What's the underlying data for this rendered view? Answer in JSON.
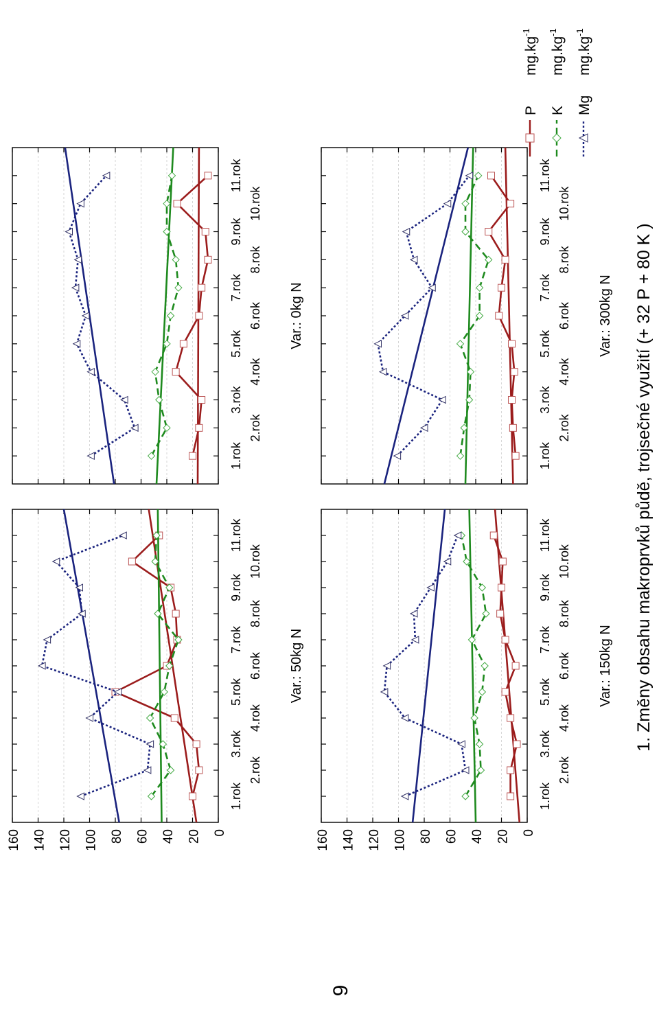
{
  "page_number": "9",
  "figure_title": "1. Změny obsahu makroprvků půdě, trojsečné využití (+ 32 P + 80 K )",
  "legend": [
    {
      "label": "P",
      "unit": "mg.kg",
      "sup": "-1",
      "color": "#9b1c1c",
      "dash": "solid",
      "marker": "square"
    },
    {
      "label": "K",
      "unit": "mg.kg",
      "sup": "-1",
      "color": "#1e8a1e",
      "dash": "dashed",
      "marker": "diamond"
    },
    {
      "label": "Mg",
      "unit": "mg.kg",
      "sup": "-1",
      "color": "#1a237e",
      "dash": "dotted",
      "marker": "triangle"
    }
  ],
  "chart_data": [
    {
      "type": "line",
      "title": "Var.: 50kg N",
      "categories": [
        "1.rok",
        "2.rok",
        "3.rok",
        "4.rok",
        "5.rok",
        "6.rok",
        "7.rok",
        "8.rok",
        "9.rok",
        "10.rok",
        "11.rok"
      ],
      "y_ticks": [
        "0",
        "20",
        "40",
        "60",
        "80",
        "100",
        "120",
        "140",
        "160"
      ],
      "ylim": [
        0,
        160
      ],
      "grid": true,
      "series": [
        {
          "name": "P",
          "values": [
            20,
            15,
            17,
            34,
            80,
            40,
            32,
            33,
            37,
            67,
            46
          ],
          "trend": [
            17,
            54
          ]
        },
        {
          "name": "K",
          "values": [
            52,
            37,
            43,
            53,
            42,
            38,
            31,
            47,
            38,
            49,
            48
          ],
          "trend": [
            44,
            47
          ]
        },
        {
          "name": "Mg",
          "values": [
            107,
            55,
            53,
            100,
            78,
            137,
            133,
            106,
            108,
            126,
            74
          ],
          "trend": [
            77,
            120
          ]
        }
      ]
    },
    {
      "type": "line",
      "title": "Var.: 0kg N",
      "categories": [
        "1.rok",
        "2.rok",
        "3.rok",
        "4.rok",
        "5.rok",
        "6.rok",
        "7.rok",
        "8.rok",
        "9.rok",
        "10.rok",
        "11.rok"
      ],
      "y_ticks": [
        "0",
        "20",
        "40",
        "60",
        "80",
        "100",
        "120",
        "140",
        "160"
      ],
      "ylim": [
        0,
        160
      ],
      "grid": true,
      "series": [
        {
          "name": "P",
          "values": [
            20,
            15,
            13,
            33,
            27,
            15,
            13,
            8,
            10,
            32,
            8
          ],
          "trend": [
            16,
            15
          ]
        },
        {
          "name": "K",
          "values": [
            52,
            40,
            46,
            49,
            40,
            37,
            31,
            33,
            40,
            40,
            36
          ],
          "trend": [
            48,
            35
          ]
        },
        {
          "name": "Mg",
          "values": [
            99,
            65,
            73,
            99,
            110,
            103,
            111,
            109,
            116,
            107,
            87
          ],
          "trend": [
            81,
            119
          ]
        }
      ]
    },
    {
      "type": "line",
      "title": "Var.: 150kg N",
      "categories": [
        "1.rok",
        "2.rok",
        "3.rok",
        "4.rok",
        "5.rok",
        "6.rok",
        "7.rok",
        "8.rok",
        "9.rok",
        "10.rok",
        "11.rok"
      ],
      "y_ticks": [
        "0",
        "20",
        "40",
        "60",
        "80",
        "100",
        "120",
        "140",
        "160"
      ],
      "ylim": [
        0,
        160
      ],
      "grid": true,
      "series": [
        {
          "name": "P",
          "values": [
            13,
            13,
            8,
            13,
            17,
            9,
            17,
            21,
            20,
            19,
            26
          ],
          "trend": [
            6,
            25
          ]
        },
        {
          "name": "K",
          "values": [
            48,
            36,
            37,
            41,
            35,
            33,
            43,
            32,
            35,
            47,
            51
          ],
          "trend": [
            40,
            45
          ]
        },
        {
          "name": "Mg",
          "values": [
            95,
            48,
            51,
            95,
            111,
            109,
            87,
            88,
            75,
            62,
            54
          ],
          "trend": [
            89,
            64
          ]
        }
      ]
    },
    {
      "type": "line",
      "title": "Var.: 300kg N",
      "categories": [
        "1.rok",
        "2.rok",
        "3.rok",
        "4.rok",
        "5.rok",
        "6.rok",
        "7.rok",
        "8.rok",
        "9.rok",
        "10.rok",
        "11.rok"
      ],
      "y_ticks": [
        "0",
        "20",
        "40",
        "60",
        "80",
        "100",
        "120",
        "140",
        "160"
      ],
      "ylim": [
        0,
        160
      ],
      "grid": true,
      "series": [
        {
          "name": "P",
          "values": [
            9,
            11,
            12,
            10,
            12,
            22,
            20,
            17,
            30,
            13,
            28
          ],
          "trend": [
            11,
            17
          ]
        },
        {
          "name": "K",
          "values": [
            52,
            49,
            45,
            44,
            52,
            37,
            37,
            30,
            48,
            48,
            38
          ],
          "trend": [
            48,
            42
          ]
        },
        {
          "name": "Mg",
          "values": [
            101,
            80,
            66,
            112,
            116,
            95,
            74,
            88,
            94,
            62,
            45
          ],
          "trend": [
            111,
            46
          ]
        }
      ]
    }
  ]
}
